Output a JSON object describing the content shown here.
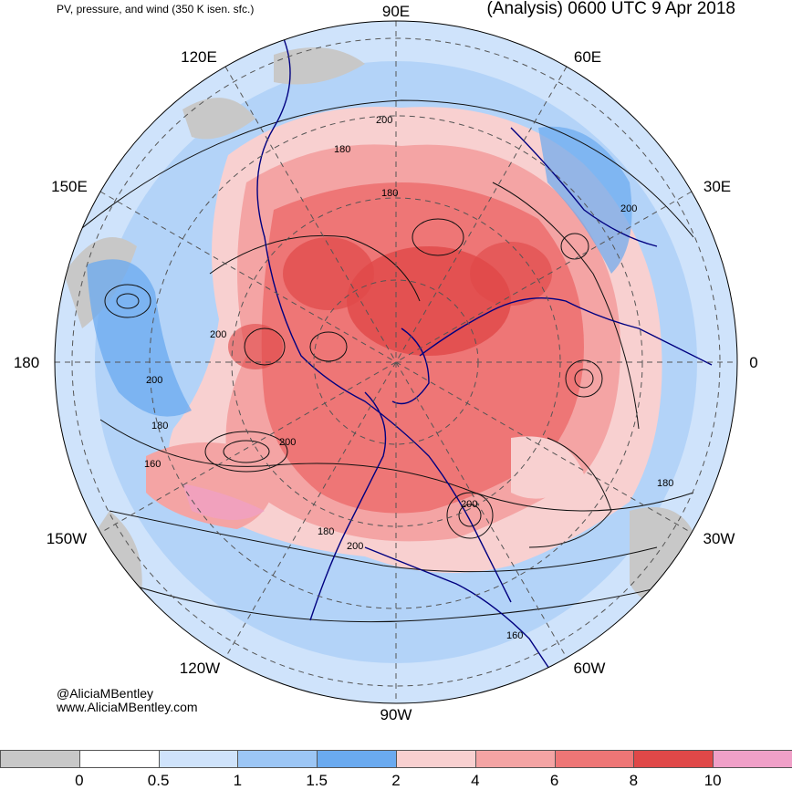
{
  "header": {
    "left_title": "PV, pressure, and wind (350 K isen. sfc.)",
    "right_title": "(Analysis) 0600 UTC 9 Apr 2018"
  },
  "map": {
    "longitude_labels": [
      "90E",
      "60E",
      "30E",
      "0",
      "30W",
      "60W",
      "90W",
      "120W",
      "150W",
      "180",
      "150E",
      "120E"
    ],
    "contour_labels": [
      "200",
      "180",
      "180",
      "200",
      "200",
      "200",
      "180",
      "160",
      "200",
      "200",
      "180",
      "180",
      "200",
      "160"
    ]
  },
  "credit": {
    "handle": "@AliciaMBentley",
    "site": "www.AliciaMBentley.com"
  },
  "colorbar": {
    "ticks": [
      "0",
      "0.5",
      "1",
      "1.5",
      "2",
      "4",
      "6",
      "8",
      "10"
    ],
    "colors": [
      "#c8c8c8",
      "#ffffff",
      "#cfe3fb",
      "#9cc6f5",
      "#6aaaf0",
      "#f8d0d0",
      "#f4a4a4",
      "#ee7676",
      "#e04848",
      "#f0a0c8"
    ]
  }
}
